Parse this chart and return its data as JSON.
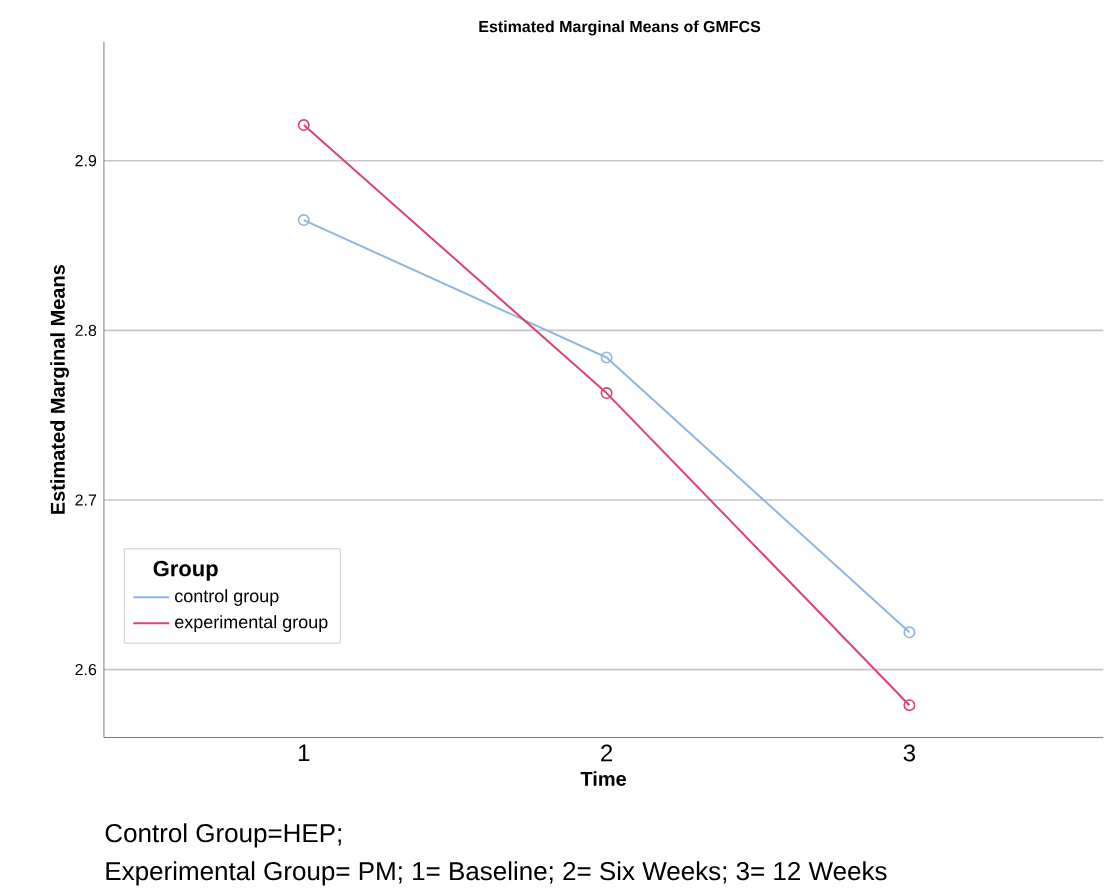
{
  "chart_data": {
    "type": "line",
    "title": "Estimated Marginal Means of GMFCS",
    "xlabel": "Time",
    "ylabel": "Estimated Marginal Means",
    "legend_title": "Group",
    "categories": [
      "1",
      "2",
      "3"
    ],
    "series": [
      {
        "name": "control group",
        "color": "#91b5e1",
        "values": [
          2.865,
          2.784,
          2.622
        ]
      },
      {
        "name": "experimental group",
        "color": "#d9456e",
        "values": [
          2.921,
          2.763,
          2.579
        ]
      }
    ],
    "ylim": [
      2.56,
      2.97
    ],
    "yticks": [
      2.6,
      2.7,
      2.8,
      2.9
    ],
    "grid": "y",
    "legend": "bottom left",
    "marker": "circle",
    "line_style": "solid",
    "annotations": [
      "Control Group=HEP;",
      "Experimental Group= PM; 1= Baseline; 2= Six Weeks; 3= 12 Weeks"
    ]
  }
}
